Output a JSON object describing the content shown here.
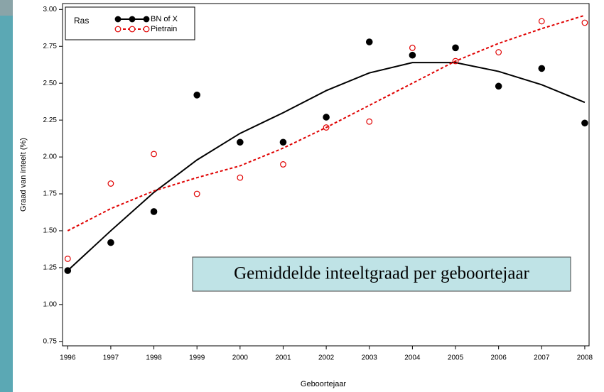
{
  "chart_data": {
    "type": "scatter",
    "x_label": "Geboortejaar",
    "y_label": "Graad van inteelt (%)",
    "legend_title": "Ras",
    "legend_position": "upper left",
    "annotation": "Gemiddelde inteeltgraad per geboortejaar",
    "x": [
      1996,
      1997,
      1998,
      1999,
      2000,
      2001,
      2002,
      2003,
      2004,
      2005,
      2006,
      2007,
      2008
    ],
    "series": [
      {
        "name": "BN of X",
        "color": "#000000",
        "marker": "filled",
        "line_style": "solid",
        "values": [
          1.23,
          1.42,
          1.63,
          2.42,
          2.1,
          2.1,
          2.27,
          2.78,
          2.69,
          2.74,
          2.48,
          2.6,
          2.23
        ],
        "trend": [
          1.23,
          1.5,
          1.76,
          1.98,
          2.16,
          2.3,
          2.45,
          2.57,
          2.64,
          2.64,
          2.58,
          2.49,
          2.37
        ]
      },
      {
        "name": "Pietrain",
        "color": "#e00000",
        "marker": "open",
        "line_style": "dotted",
        "values": [
          1.31,
          1.82,
          2.02,
          1.75,
          1.86,
          1.95,
          2.2,
          2.24,
          2.74,
          2.65,
          2.71,
          2.92,
          2.91
        ],
        "trend": [
          1.5,
          1.65,
          1.77,
          1.86,
          1.94,
          2.06,
          2.2,
          2.35,
          2.5,
          2.65,
          2.77,
          2.87,
          2.96
        ]
      }
    ],
    "xlim": [
      1995.88,
      2008.1
    ],
    "xticks": [
      1996,
      1997,
      1998,
      1999,
      2000,
      2001,
      2002,
      2003,
      2004,
      2005,
      2006,
      2007,
      2008
    ],
    "ylim": [
      0.72,
      3.04
    ],
    "yticks": [
      0.75,
      {
        "value": 1,
        "label": "1.00"
      },
      1.25,
      {
        "value": 1.5,
        "label": "1.50"
      },
      1.75,
      {
        "value": 2,
        "label": "2.00"
      },
      2.25,
      {
        "value": 2.5,
        "label": "2.50"
      },
      2.75,
      {
        "value": 3,
        "label": "3.00"
      }
    ]
  }
}
